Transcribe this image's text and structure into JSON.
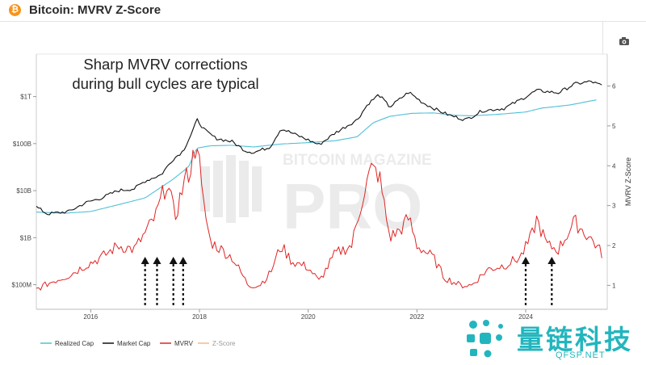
{
  "header": {
    "title": "Bitcoin: MVRV Z-Score",
    "coin_symbol": "₿"
  },
  "annotation": {
    "line1": "Sharp MVRV corrections",
    "line2": "during bull cycles are typical"
  },
  "watermark": {
    "line1": "BITCOIN MAGAZINE",
    "line2": "PRO"
  },
  "brand": {
    "name": "量链科技",
    "url": "QFSP.NET"
  },
  "colors": {
    "realized": "#4fc0d8",
    "market": "#111111",
    "mvrv": "#e02424",
    "zscore": "#f5b98a",
    "brand": "#23b5be"
  },
  "chart_data": {
    "type": "line",
    "title": "Bitcoin: MVRV Z-Score",
    "x_ticks": [
      "2016",
      "2018",
      "2020",
      "2022",
      "2024"
    ],
    "x_range": [
      2015.0,
      2025.5
    ],
    "left_axis": {
      "scale": "log",
      "ticks": [
        "$100M",
        "$1B",
        "$10B",
        "$100B",
        "$1T"
      ],
      "range_usd": [
        30000000,
        8000000000000
      ]
    },
    "right_axis": {
      "label": "MVRV Z-Score",
      "ticks": [
        "1",
        "2",
        "3",
        "4",
        "5",
        "6"
      ],
      "range": [
        0.4,
        6.8
      ]
    },
    "legend": [
      "Realized Cap",
      "Market Cap",
      "MVRV",
      "Z-Score"
    ],
    "series": [
      {
        "name": "Realized Cap",
        "axis": "left",
        "color": "#4fc0d8",
        "points": [
          [
            2015.0,
            3500000000.0
          ],
          [
            2015.5,
            3300000000.0
          ],
          [
            2016.0,
            3600000000.0
          ],
          [
            2016.5,
            5000000000.0
          ],
          [
            2017.0,
            7000000000.0
          ],
          [
            2017.5,
            17000000000.0
          ],
          [
            2017.8,
            32000000000.0
          ],
          [
            2017.95,
            80000000000.0
          ],
          [
            2018.2,
            90000000000.0
          ],
          [
            2018.6,
            92000000000.0
          ],
          [
            2019.0,
            85000000000.0
          ],
          [
            2019.5,
            98000000000.0
          ],
          [
            2020.0,
            105000000000.0
          ],
          [
            2020.5,
            115000000000.0
          ],
          [
            2020.9,
            140000000000.0
          ],
          [
            2021.2,
            280000000000.0
          ],
          [
            2021.5,
            380000000000.0
          ],
          [
            2021.9,
            440000000000.0
          ],
          [
            2022.3,
            450000000000.0
          ],
          [
            2022.7,
            400000000000.0
          ],
          [
            2023.0,
            390000000000.0
          ],
          [
            2023.5,
            420000000000.0
          ],
          [
            2024.0,
            470000000000.0
          ],
          [
            2024.3,
            570000000000.0
          ],
          [
            2024.8,
            660000000000.0
          ],
          [
            2025.3,
            850000000000.0
          ]
        ]
      },
      {
        "name": "Market Cap",
        "axis": "left",
        "color": "#111111",
        "points": [
          [
            2015.0,
            4500000000.0
          ],
          [
            2015.2,
            3200000000.0
          ],
          [
            2015.6,
            3600000000.0
          ],
          [
            2015.9,
            5500000000.0
          ],
          [
            2016.2,
            7000000000.0
          ],
          [
            2016.5,
            10000000000.0
          ],
          [
            2016.8,
            11000000000.0
          ],
          [
            2017.0,
            16000000000.0
          ],
          [
            2017.3,
            22000000000.0
          ],
          [
            2017.5,
            45000000000.0
          ],
          [
            2017.7,
            70000000000.0
          ],
          [
            2017.85,
            160000000000.0
          ],
          [
            2017.96,
            320000000000.0
          ],
          [
            2018.1,
            190000000000.0
          ],
          [
            2018.3,
            130000000000.0
          ],
          [
            2018.6,
            110000000000.0
          ],
          [
            2018.85,
            70000000000.0
          ],
          [
            2019.0,
            65000000000.0
          ],
          [
            2019.3,
            85000000000.0
          ],
          [
            2019.5,
            210000000000.0
          ],
          [
            2019.8,
            150000000000.0
          ],
          [
            2020.2,
            95000000000.0
          ],
          [
            2020.5,
            170000000000.0
          ],
          [
            2020.9,
            320000000000.0
          ],
          [
            2021.1,
            700000000000.0
          ],
          [
            2021.3,
            1100000000000.0
          ],
          [
            2021.5,
            600000000000.0
          ],
          [
            2021.85,
            1250000000000.0
          ],
          [
            2022.1,
            750000000000.0
          ],
          [
            2022.4,
            500000000000.0
          ],
          [
            2022.6,
            400000000000.0
          ],
          [
            2022.9,
            320000000000.0
          ],
          [
            2023.2,
            500000000000.0
          ],
          [
            2023.6,
            560000000000.0
          ],
          [
            2023.9,
            850000000000.0
          ],
          [
            2024.2,
            1350000000000.0
          ],
          [
            2024.6,
            1200000000000.0
          ],
          [
            2024.9,
            1850000000000.0
          ],
          [
            2025.2,
            2100000000000.0
          ],
          [
            2025.4,
            1700000000000.0
          ]
        ]
      },
      {
        "name": "MVRV",
        "axis": "right",
        "color": "#e02424",
        "points": [
          [
            2015.0,
            0.9
          ],
          [
            2015.3,
            1.1
          ],
          [
            2015.6,
            1.25
          ],
          [
            2015.9,
            1.5
          ],
          [
            2016.2,
            1.7
          ],
          [
            2016.5,
            2.0
          ],
          [
            2016.8,
            1.9
          ],
          [
            2017.0,
            2.3
          ],
          [
            2017.2,
            2.75
          ],
          [
            2017.4,
            3.6
          ],
          [
            2017.55,
            2.7
          ],
          [
            2017.7,
            3.5
          ],
          [
            2017.85,
            4.0
          ],
          [
            2017.96,
            4.7
          ],
          [
            2018.05,
            3.2
          ],
          [
            2018.2,
            2.1
          ],
          [
            2018.4,
            1.9
          ],
          [
            2018.6,
            1.7
          ],
          [
            2018.9,
            1.0
          ],
          [
            2019.1,
            1.0
          ],
          [
            2019.3,
            1.3
          ],
          [
            2019.5,
            2.0
          ],
          [
            2019.7,
            1.6
          ],
          [
            2020.0,
            1.45
          ],
          [
            2020.2,
            1.1
          ],
          [
            2020.5,
            1.8
          ],
          [
            2020.8,
            2.0
          ],
          [
            2021.0,
            3.2
          ],
          [
            2021.15,
            3.9
          ],
          [
            2021.3,
            3.8
          ],
          [
            2021.5,
            2.2
          ],
          [
            2021.7,
            2.4
          ],
          [
            2021.85,
            2.7
          ],
          [
            2022.0,
            2.0
          ],
          [
            2022.3,
            1.7
          ],
          [
            2022.5,
            1.2
          ],
          [
            2022.8,
            1.0
          ],
          [
            2023.0,
            1.0
          ],
          [
            2023.3,
            1.4
          ],
          [
            2023.6,
            1.5
          ],
          [
            2023.9,
            1.7
          ],
          [
            2024.1,
            2.2
          ],
          [
            2024.2,
            2.65
          ],
          [
            2024.4,
            2.0
          ],
          [
            2024.6,
            1.9
          ],
          [
            2024.9,
            2.6
          ],
          [
            2025.1,
            2.3
          ],
          [
            2025.25,
            2.1
          ],
          [
            2025.4,
            1.8
          ]
        ]
      },
      {
        "name": "Z-Score",
        "axis": "right",
        "color": "#f5b98a",
        "points": []
      }
    ],
    "arrows_at_x": [
      2017.0,
      2017.22,
      2017.52,
      2017.7,
      2024.0,
      2024.48
    ]
  }
}
